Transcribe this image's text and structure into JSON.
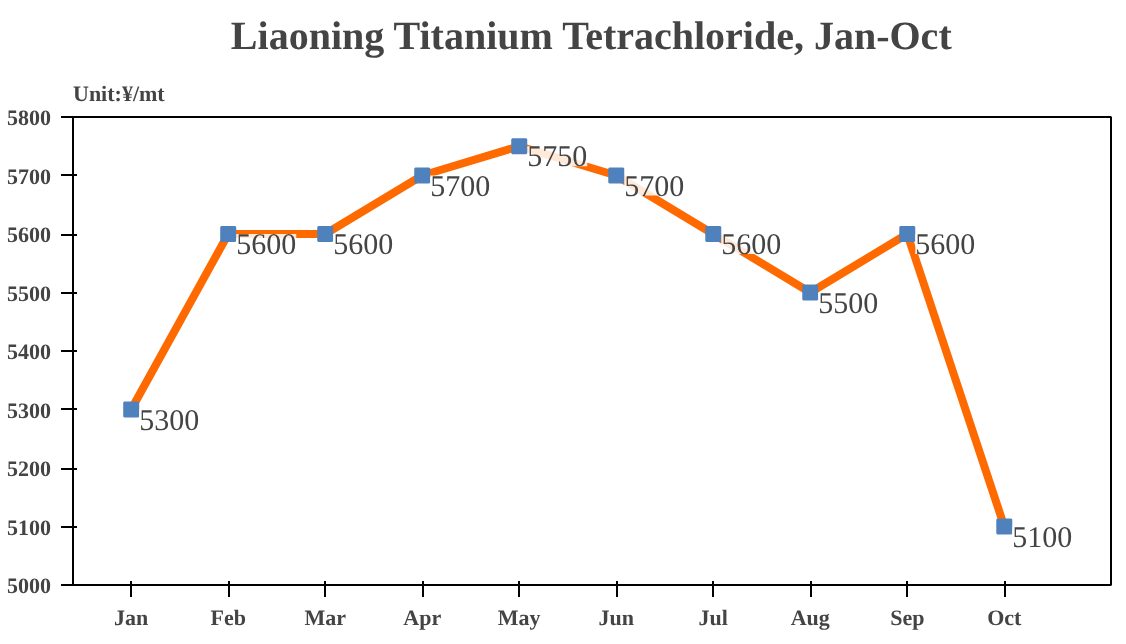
{
  "chart_data": {
    "type": "line",
    "title": "Liaoning Titanium Tetrachloride, Jan-Oct",
    "ylabel": "Unit:¥/mt",
    "categories": [
      "Jan",
      "Feb",
      "Mar",
      "Apr",
      "May",
      "Jun",
      "Jul",
      "Aug",
      "Sep",
      "Oct"
    ],
    "series": [
      {
        "color": "#ff6a00",
        "values": [
          5300,
          5600,
          5600,
          5700,
          5750,
          5700,
          5600,
          5500,
          5600,
          5100
        ]
      }
    ],
    "ylim": [
      5000,
      5800
    ],
    "yticks": [
      5000,
      5100,
      5200,
      5300,
      5400,
      5500,
      5600,
      5700,
      5800
    ],
    "marker": "square",
    "line_style": "solid",
    "data_labels": true
  }
}
